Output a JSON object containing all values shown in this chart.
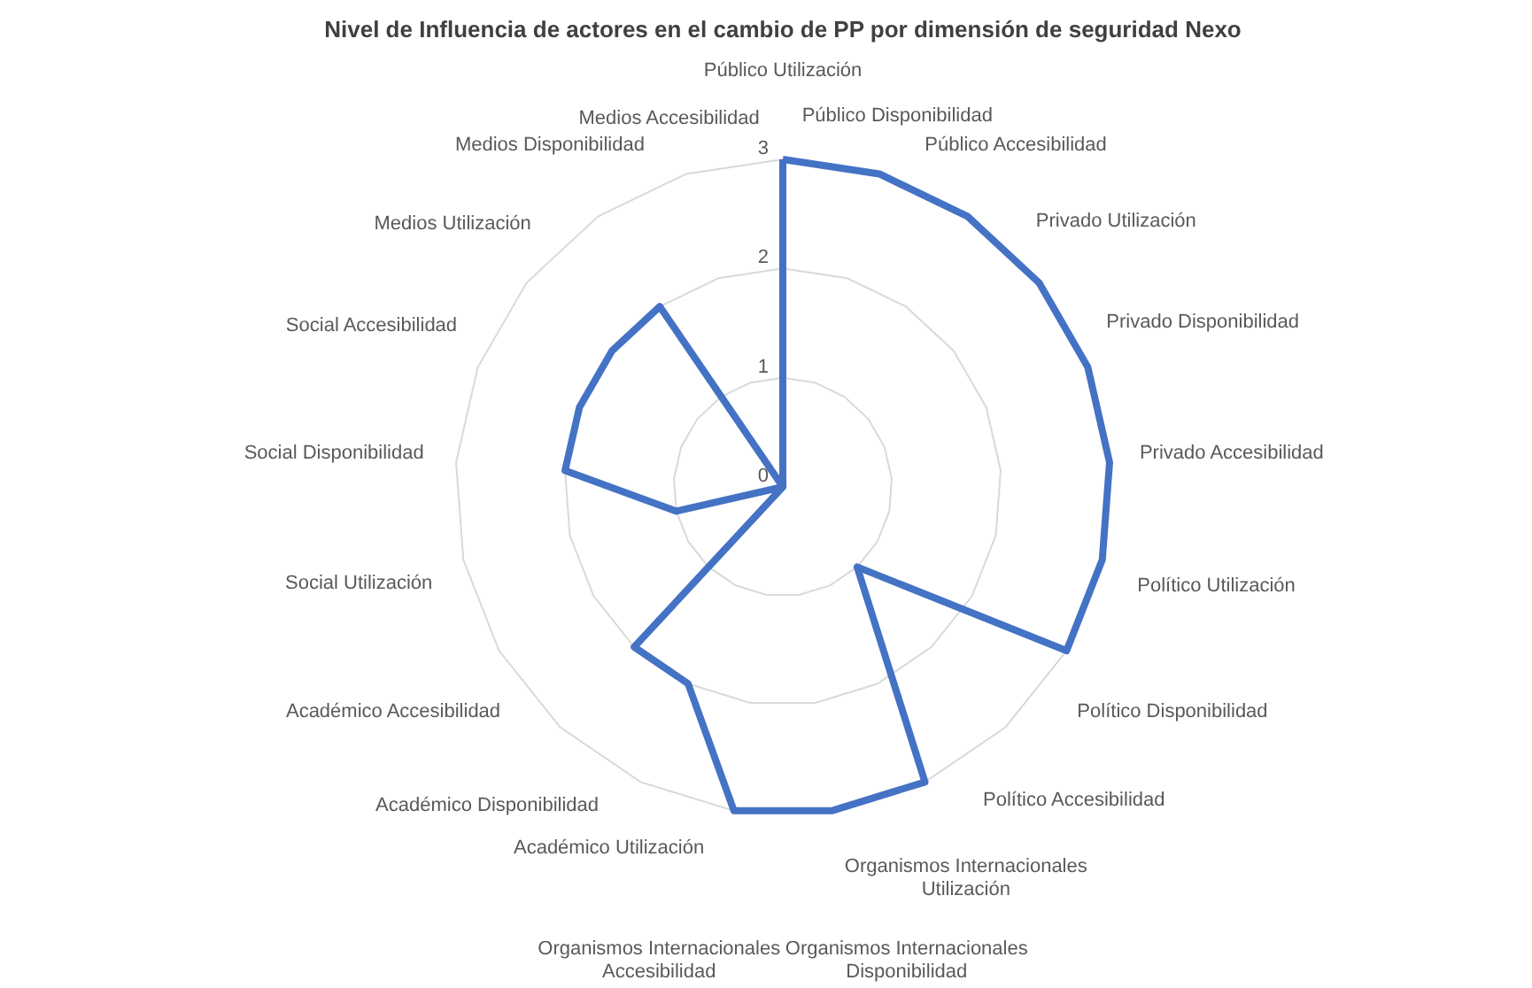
{
  "chart_data": {
    "type": "radar",
    "title": "Nivel de Influencia de actores en el cambio de PP por dimensión de seguridad Nexo",
    "categories": [
      "Público Utilización",
      "Público Disponibilidad",
      "Público Accesibilidad",
      "Privado Utilización",
      "Privado Disponibilidad",
      "Privado Accesibilidad",
      "Político Utilización",
      "Político Disponibilidad",
      "Político Accesibilidad",
      "Organismos Internacionales Utilización",
      "Organismos Internacionales Disponibilidad",
      "Organismos Internacionales Accesibilidad",
      "Académico Utilización",
      "Académico Disponibilidad",
      "Académico Accesibilidad",
      "Social Utilización",
      "Social Disponibilidad",
      "Social Accesibilidad",
      "Medios Utilización",
      "Medios Disponibilidad",
      "Medios Accesibilidad"
    ],
    "series": [
      {
        "color": "#4472c4",
        "values": [
          3,
          3,
          3,
          3,
          3,
          3,
          3,
          3,
          1,
          3,
          3,
          3,
          2,
          2,
          0,
          1,
          2,
          2,
          2,
          2,
          0
        ]
      }
    ],
    "ylim": [
      0,
      3
    ],
    "yticks": [
      0,
      1,
      2,
      3
    ],
    "grid": true,
    "marker": "none"
  }
}
